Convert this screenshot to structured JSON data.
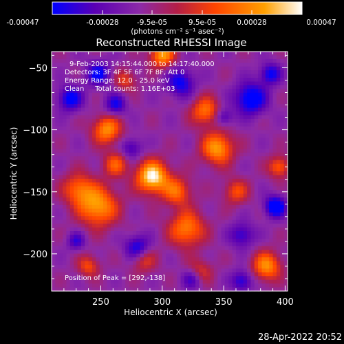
{
  "colorbar": {
    "ticks": [
      "-0.00047",
      "-0.00028",
      "-9.5e-05",
      "9.5e-05",
      "0.00028",
      "0.00047"
    ],
    "units": "(photons cm⁻² s⁻¹ asec⁻²)",
    "colors": [
      "#0000ff",
      "#5a00b4",
      "#8c2aa8",
      "#b41e46",
      "#ff4400",
      "#ffa000",
      "#ffffff"
    ]
  },
  "chart_data": {
    "type": "heatmap",
    "title": "Reconstructed RHESSI Image",
    "xlabel": "Heliocentric X (arcsec)",
    "ylabel": "Heliocentric Y (arcsec)",
    "xlim": [
      210,
      402
    ],
    "ylim": [
      -230,
      -37
    ],
    "xticks": [
      250,
      300,
      350,
      400
    ],
    "yticks": [
      -50,
      -100,
      -150,
      -200
    ],
    "zlim": [
      -0.00047,
      0.00047
    ],
    "annotations": [
      "9-Feb-2003 14:15:44.000 to 14:17:40.000",
      "Detectors: 3F 4F 5F 6F 7F 8F, Att 0",
      "Energy Range: 12.0 - 25.0 keV",
      "Clean     Total counts: 1.16E+03",
      "Position of Peak = [292,-138]"
    ],
    "peak": {
      "x": 292,
      "y": -138
    },
    "sources": [
      {
        "x": 292,
        "y": -138,
        "r": 9,
        "amp": 1.0
      },
      {
        "x": 255,
        "y": -100,
        "r": 8,
        "amp": 0.7
      },
      {
        "x": 248,
        "y": -162,
        "r": 11,
        "amp": 0.75
      },
      {
        "x": 232,
        "y": -148,
        "r": 9,
        "amp": 0.55
      },
      {
        "x": 262,
        "y": -128,
        "r": 7,
        "amp": 0.5
      },
      {
        "x": 345,
        "y": -115,
        "r": 9,
        "amp": 0.75
      },
      {
        "x": 335,
        "y": -85,
        "r": 8,
        "amp": 0.6
      },
      {
        "x": 320,
        "y": -180,
        "r": 10,
        "amp": 0.65
      },
      {
        "x": 312,
        "y": -150,
        "r": 8,
        "amp": 0.55
      },
      {
        "x": 385,
        "y": -210,
        "r": 8,
        "amp": 0.7
      },
      {
        "x": 395,
        "y": -130,
        "r": 6,
        "amp": 0.55
      },
      {
        "x": 300,
        "y": -40,
        "r": 7,
        "amp": 0.75
      },
      {
        "x": 360,
        "y": -150,
        "r": 7,
        "amp": 0.45
      },
      {
        "x": 330,
        "y": -215,
        "r": 7,
        "amp": 0.45
      },
      {
        "x": 285,
        "y": -205,
        "r": 7,
        "amp": 0.4
      },
      {
        "x": 240,
        "y": -210,
        "r": 6,
        "amp": 0.45
      },
      {
        "x": 270,
        "y": -60,
        "r": 6,
        "amp": 0.4
      },
      {
        "x": 225,
        "y": -75,
        "r": 7,
        "amp": -0.6
      },
      {
        "x": 248,
        "y": -55,
        "r": 7,
        "amp": -0.55
      },
      {
        "x": 262,
        "y": -80,
        "r": 6,
        "amp": -0.5
      },
      {
        "x": 315,
        "y": -62,
        "r": 8,
        "amp": -0.55
      },
      {
        "x": 372,
        "y": -75,
        "r": 9,
        "amp": -0.7
      },
      {
        "x": 388,
        "y": -55,
        "r": 6,
        "amp": -0.55
      },
      {
        "x": 392,
        "y": -162,
        "r": 6,
        "amp": -0.75
      },
      {
        "x": 280,
        "y": -195,
        "r": 7,
        "amp": -0.55
      },
      {
        "x": 325,
        "y": -220,
        "r": 6,
        "amp": -0.5
      },
      {
        "x": 365,
        "y": -222,
        "r": 6,
        "amp": -0.5
      },
      {
        "x": 230,
        "y": -190,
        "r": 5,
        "amp": -0.4
      },
      {
        "x": 275,
        "y": -115,
        "r": 6,
        "amp": -0.4
      },
      {
        "x": 365,
        "y": -185,
        "r": 7,
        "amp": -0.45
      },
      {
        "x": 350,
        "y": -90,
        "r": 5,
        "amp": -0.4
      }
    ]
  },
  "footer": {
    "timestamp": "28-Apr-2022 20:52"
  }
}
